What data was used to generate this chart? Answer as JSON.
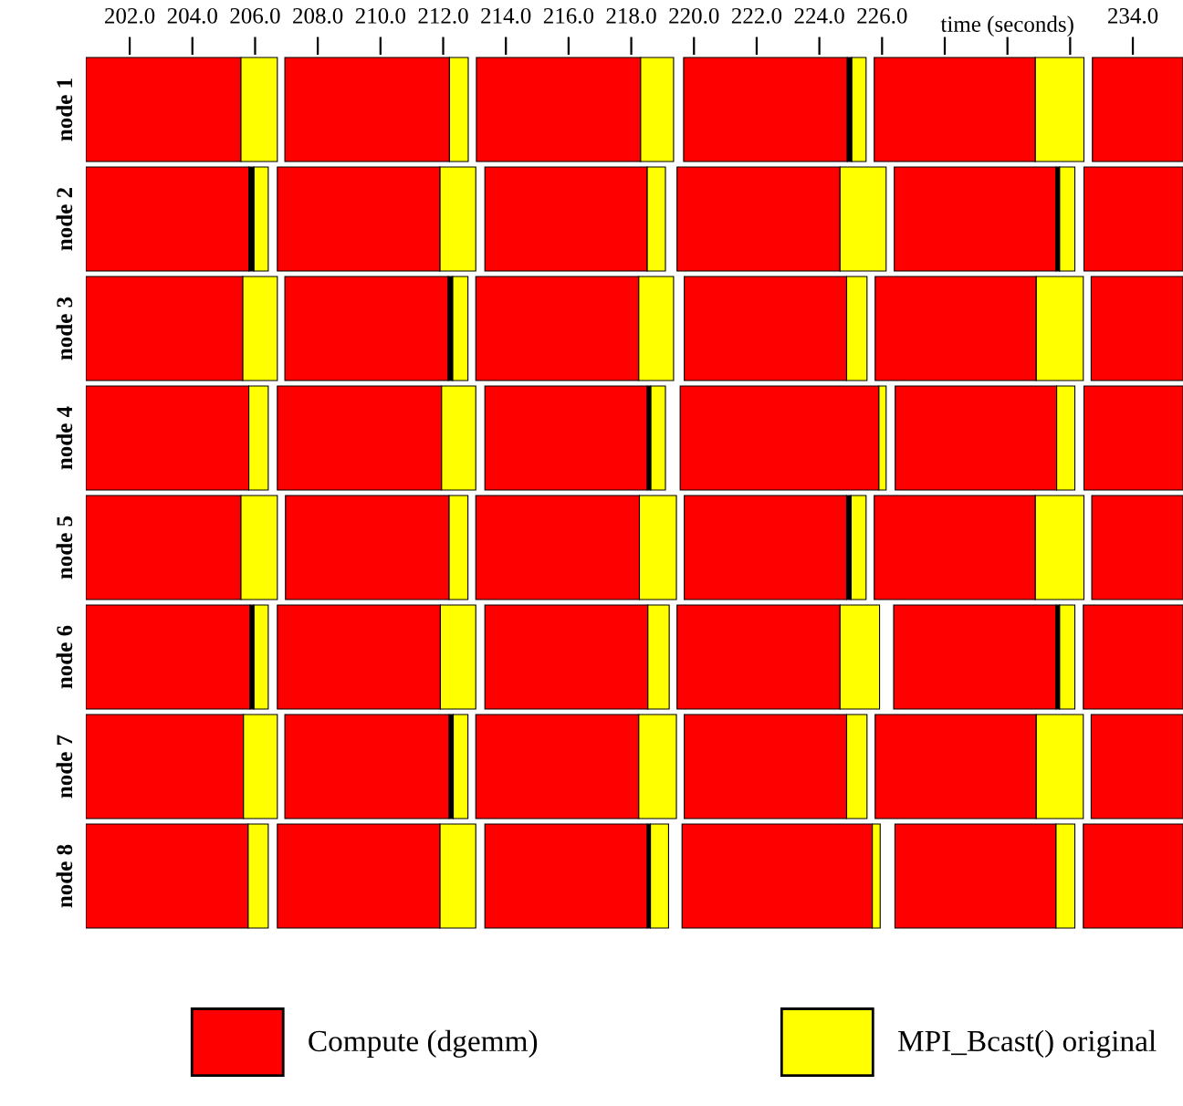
{
  "chart_data": {
    "type": "bar",
    "orientation": "horizontal",
    "xlabel": "time (seconds)",
    "categories": [
      "node 1",
      "node 2",
      "node 3",
      "node 4",
      "node 5",
      "node 6",
      "node 7",
      "node 8"
    ],
    "xlim": [
      200.6,
      235.6
    ],
    "xticks": [
      {
        "value": 202,
        "label": "202.0"
      },
      {
        "value": 204,
        "label": "204.0"
      },
      {
        "value": 206,
        "label": "206.0"
      },
      {
        "value": 208,
        "label": "208.0"
      },
      {
        "value": 210,
        "label": "210.0"
      },
      {
        "value": 212,
        "label": "212.0"
      },
      {
        "value": 214,
        "label": "214.0"
      },
      {
        "value": 216,
        "label": "216.0"
      },
      {
        "value": 218,
        "label": "218.0"
      },
      {
        "value": 220,
        "label": "220.0"
      },
      {
        "value": 222,
        "label": "222.0"
      },
      {
        "value": 224,
        "label": "224.0"
      },
      {
        "value": 226,
        "label": "226.0"
      },
      {
        "value": 228,
        "label": null
      },
      {
        "value": 230,
        "label": null
      },
      {
        "value": 232,
        "label": null
      },
      {
        "value": 234,
        "label": "234.0"
      }
    ],
    "legend": "bottom",
    "grid": false,
    "series": [
      {
        "name": "Compute (dgemm)",
        "color": "#ff0000",
        "base": [
          200.6,
          200.6,
          200.6,
          200.6,
          200.6,
          200.6,
          200.6,
          200.6
        ],
        "values": [
          4.95,
          5.2,
          5.01,
          5.2,
          4.95,
          5.24,
          5.03,
          5.18
        ]
      },
      {
        "color": "#000000",
        "base": [
          null,
          205.8,
          null,
          null,
          null,
          205.84,
          null,
          null
        ],
        "values": [
          null,
          0.16,
          null,
          null,
          null,
          0.12,
          null,
          null
        ]
      },
      {
        "name": "MPI_Bcast() original",
        "color": "#ffff00",
        "base": [
          205.55,
          205.96,
          205.61,
          205.8,
          205.55,
          205.96,
          205.63,
          205.78
        ],
        "values": [
          1.16,
          0.46,
          1.1,
          0.62,
          1.16,
          0.46,
          1.08,
          0.64
        ]
      },
      {
        "color": "#ff0000",
        "base": [
          206.95,
          206.71,
          206.95,
          206.71,
          206.97,
          206.71,
          206.95,
          206.71
        ],
        "values": [
          5.25,
          5.19,
          5.21,
          5.24,
          5.22,
          5.2,
          5.24,
          5.19
        ]
      },
      {
        "color": "#000000",
        "base": [
          null,
          null,
          212.16,
          null,
          null,
          null,
          212.19,
          null
        ],
        "values": [
          null,
          null,
          0.14,
          null,
          null,
          null,
          0.13,
          null
        ]
      },
      {
        "color": "#ffff00",
        "base": [
          212.2,
          211.9,
          212.3,
          211.95,
          212.19,
          211.91,
          212.32,
          211.9
        ],
        "values": [
          0.6,
          1.14,
          0.49,
          1.09,
          0.6,
          1.13,
          0.47,
          1.14
        ]
      },
      {
        "color": "#ff0000",
        "base": [
          213.06,
          213.33,
          213.04,
          213.33,
          213.04,
          213.33,
          213.04,
          213.33
        ],
        "values": [
          5.24,
          5.18,
          5.2,
          5.18,
          5.22,
          5.2,
          5.2,
          5.18
        ]
      },
      {
        "color": "#000000",
        "base": [
          null,
          null,
          null,
          218.51,
          null,
          null,
          null,
          218.51
        ],
        "values": [
          null,
          null,
          null,
          0.11,
          null,
          null,
          null,
          0.1
        ]
      },
      {
        "color": "#ffff00",
        "base": [
          218.3,
          218.51,
          218.24,
          218.62,
          218.26,
          218.53,
          218.24,
          218.61
        ],
        "values": [
          1.05,
          0.58,
          1.11,
          0.47,
          1.18,
          0.68,
          1.2,
          0.58
        ]
      },
      {
        "color": "#ff0000",
        "base": [
          219.67,
          219.46,
          219.69,
          219.56,
          219.69,
          219.46,
          219.69,
          219.62
        ],
        "values": [
          5.22,
          5.2,
          5.18,
          6.34,
          5.18,
          5.2,
          5.18,
          6.07
        ]
      },
      {
        "color": "#000000",
        "base": [
          224.89,
          null,
          null,
          null,
          224.87,
          null,
          null,
          null
        ],
        "values": [
          0.14,
          null,
          null,
          null,
          0.14,
          null,
          null,
          null
        ]
      },
      {
        "color": "#ffff00",
        "base": [
          225.03,
          224.66,
          224.87,
          225.9,
          225.01,
          224.66,
          224.87,
          225.69
        ],
        "values": [
          0.46,
          1.47,
          0.65,
          0.23,
          0.48,
          1.26,
          0.65,
          0.25
        ]
      },
      {
        "color": "#ff0000",
        "base": [
          225.75,
          226.39,
          225.78,
          226.42,
          225.75,
          226.37,
          225.78,
          226.41
        ],
        "values": [
          5.14,
          5.16,
          5.14,
          5.15,
          5.14,
          5.18,
          5.14,
          5.14
        ]
      },
      {
        "color": "#000000",
        "base": [
          null,
          231.55,
          null,
          null,
          null,
          231.55,
          null,
          null
        ],
        "values": [
          null,
          0.11,
          null,
          null,
          null,
          0.11,
          null,
          null
        ]
      },
      {
        "color": "#ffff00",
        "base": [
          230.89,
          231.66,
          230.92,
          231.57,
          230.89,
          231.66,
          230.92,
          231.55
        ],
        "values": [
          1.55,
          0.49,
          1.5,
          0.58,
          1.55,
          0.49,
          1.5,
          0.6
        ]
      },
      {
        "color": "#ff0000",
        "base": [
          232.71,
          232.44,
          232.67,
          232.44,
          232.69,
          232.42,
          232.67,
          232.42
        ],
        "values": [
          2.89,
          3.16,
          2.93,
          3.16,
          2.91,
          3.18,
          2.93,
          3.18
        ]
      }
    ]
  }
}
